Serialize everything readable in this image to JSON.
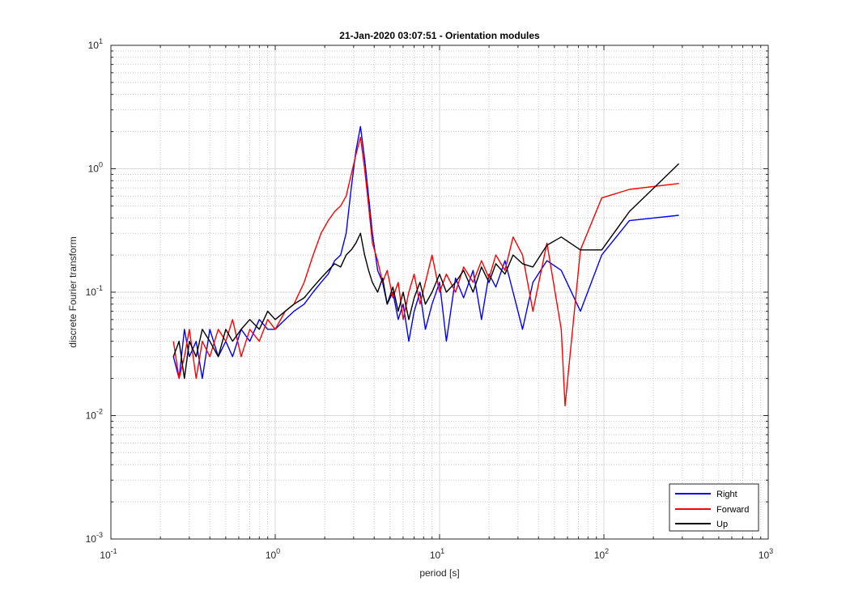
{
  "chart_data": {
    "type": "line",
    "title": "21-Jan-2020 03:07:51 - Orientation modules",
    "xlabel": "period [s]",
    "ylabel": "discrete Fourier transform",
    "xscale": "log",
    "yscale": "log",
    "xlim": [
      0.1,
      1000
    ],
    "ylim": [
      0.001,
      10
    ],
    "grid": "major and minor (dotted)",
    "legend_position": "bottom-right",
    "x_tick_labels": [
      {
        "base": "10",
        "exp": "-1"
      },
      {
        "base": "10",
        "exp": "0"
      },
      {
        "base": "10",
        "exp": "1"
      },
      {
        "base": "10",
        "exp": "2"
      },
      {
        "base": "10",
        "exp": "3"
      }
    ],
    "y_tick_labels": [
      {
        "base": "10",
        "exp": "-3"
      },
      {
        "base": "10",
        "exp": "-2"
      },
      {
        "base": "10",
        "exp": "-1"
      },
      {
        "base": "10",
        "exp": "0"
      },
      {
        "base": "10",
        "exp": "1"
      }
    ],
    "series": [
      {
        "name": "Right",
        "color": "#0000ff",
        "x": [
          0.24,
          0.26,
          0.28,
          0.3,
          0.33,
          0.36,
          0.4,
          0.45,
          0.5,
          0.55,
          0.62,
          0.7,
          0.8,
          0.9,
          1.0,
          1.15,
          1.3,
          1.5,
          1.7,
          1.9,
          2.1,
          2.3,
          2.5,
          2.7,
          2.9,
          3.1,
          3.3,
          3.5,
          3.7,
          3.9,
          4.2,
          4.5,
          4.8,
          5.2,
          5.6,
          6.0,
          6.5,
          7.0,
          7.6,
          8.2,
          9.0,
          10.0,
          11.0,
          12.5,
          14.0,
          16.0,
          18.0,
          20.0,
          22.0,
          25.0,
          28.0,
          32.0,
          37.0,
          45.0,
          55.0,
          72.0,
          97.0,
          143.0,
          286.0
        ],
        "y": [
          0.03,
          0.02,
          0.05,
          0.03,
          0.04,
          0.02,
          0.05,
          0.03,
          0.04,
          0.03,
          0.05,
          0.04,
          0.06,
          0.05,
          0.05,
          0.06,
          0.07,
          0.08,
          0.1,
          0.12,
          0.14,
          0.18,
          0.2,
          0.3,
          0.7,
          1.4,
          2.2,
          1.2,
          0.6,
          0.3,
          0.15,
          0.12,
          0.08,
          0.1,
          0.06,
          0.08,
          0.04,
          0.07,
          0.1,
          0.05,
          0.08,
          0.12,
          0.04,
          0.13,
          0.09,
          0.15,
          0.06,
          0.14,
          0.11,
          0.18,
          0.1,
          0.05,
          0.12,
          0.18,
          0.15,
          0.07,
          0.2,
          0.38,
          0.42
        ]
      },
      {
        "name": "Forward",
        "color": "#ff0000",
        "x": [
          0.24,
          0.26,
          0.28,
          0.3,
          0.33,
          0.36,
          0.4,
          0.45,
          0.5,
          0.55,
          0.62,
          0.7,
          0.8,
          0.9,
          1.0,
          1.15,
          1.3,
          1.5,
          1.7,
          1.9,
          2.1,
          2.3,
          2.5,
          2.7,
          2.9,
          3.1,
          3.3,
          3.5,
          3.7,
          3.9,
          4.2,
          4.5,
          4.8,
          5.2,
          5.6,
          6.0,
          6.5,
          7.0,
          7.6,
          8.2,
          9.0,
          10.0,
          11.0,
          12.5,
          14.0,
          16.0,
          18.0,
          20.0,
          22.0,
          25.0,
          28.0,
          32.0,
          37.0,
          45.0,
          55.0,
          58.0,
          72.0,
          97.0,
          143.0,
          286.0
        ],
        "y": [
          0.04,
          0.02,
          0.03,
          0.05,
          0.02,
          0.04,
          0.03,
          0.05,
          0.04,
          0.06,
          0.03,
          0.05,
          0.04,
          0.06,
          0.05,
          0.07,
          0.08,
          0.12,
          0.2,
          0.3,
          0.38,
          0.45,
          0.5,
          0.6,
          0.9,
          1.3,
          1.8,
          1.0,
          0.5,
          0.25,
          0.18,
          0.12,
          0.15,
          0.09,
          0.12,
          0.06,
          0.1,
          0.14,
          0.08,
          0.12,
          0.2,
          0.1,
          0.14,
          0.1,
          0.16,
          0.12,
          0.18,
          0.13,
          0.2,
          0.15,
          0.28,
          0.2,
          0.07,
          0.25,
          0.05,
          0.012,
          0.22,
          0.58,
          0.68,
          0.76
        ]
      },
      {
        "name": "Up",
        "color": "#000000",
        "x": [
          0.24,
          0.26,
          0.28,
          0.3,
          0.33,
          0.36,
          0.4,
          0.45,
          0.5,
          0.55,
          0.62,
          0.7,
          0.8,
          0.9,
          1.0,
          1.15,
          1.3,
          1.5,
          1.7,
          1.9,
          2.1,
          2.3,
          2.5,
          2.7,
          2.9,
          3.1,
          3.3,
          3.5,
          3.7,
          3.9,
          4.2,
          4.5,
          4.8,
          5.2,
          5.6,
          6.0,
          6.5,
          7.0,
          7.6,
          8.2,
          9.0,
          10.0,
          11.0,
          12.5,
          14.0,
          16.0,
          18.0,
          20.0,
          22.0,
          25.0,
          28.0,
          32.0,
          37.0,
          45.0,
          55.0,
          72.0,
          97.0,
          143.0,
          286.0
        ],
        "y": [
          0.03,
          0.04,
          0.02,
          0.04,
          0.03,
          0.05,
          0.04,
          0.03,
          0.05,
          0.04,
          0.05,
          0.06,
          0.05,
          0.07,
          0.06,
          0.07,
          0.08,
          0.09,
          0.11,
          0.13,
          0.15,
          0.17,
          0.16,
          0.2,
          0.22,
          0.25,
          0.3,
          0.2,
          0.15,
          0.12,
          0.1,
          0.13,
          0.08,
          0.11,
          0.07,
          0.1,
          0.06,
          0.09,
          0.12,
          0.08,
          0.1,
          0.14,
          0.1,
          0.12,
          0.15,
          0.1,
          0.16,
          0.12,
          0.17,
          0.14,
          0.2,
          0.17,
          0.16,
          0.24,
          0.28,
          0.22,
          0.22,
          0.45,
          1.1
        ]
      }
    ]
  }
}
